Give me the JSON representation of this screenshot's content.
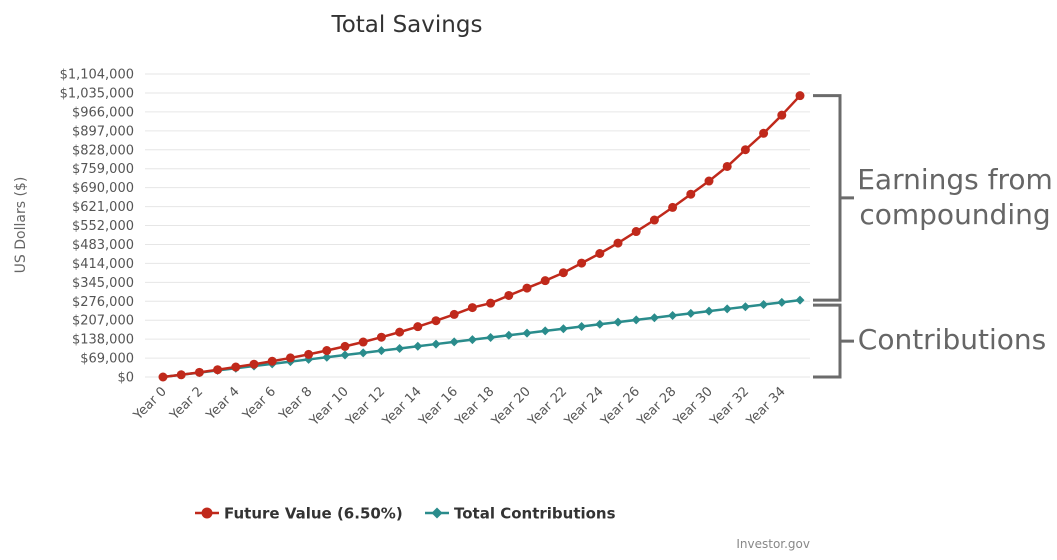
{
  "chart_data": {
    "type": "line",
    "title": "Total Savings",
    "ylabel": "US Dollars ($)",
    "xlabel": "",
    "ylim": [
      0,
      1104000
    ],
    "y_ticks": [
      0,
      69000,
      138000,
      207000,
      276000,
      345000,
      414000,
      483000,
      552000,
      621000,
      690000,
      759000,
      828000,
      897000,
      966000,
      1035000,
      1104000
    ],
    "y_tick_labels": [
      "$0",
      "$69,000",
      "$138,000",
      "$207,000",
      "$276,000",
      "$345,000",
      "$414,000",
      "$483,000",
      "$552,000",
      "$621,000",
      "$690,000",
      "$759,000",
      "$828,000",
      "$897,000",
      "$966,000",
      "$1,035,000",
      "$1,104,000"
    ],
    "categories": [
      "Year 0",
      "Year 1",
      "Year 2",
      "Year 3",
      "Year 4",
      "Year 5",
      "Year 6",
      "Year 7",
      "Year 8",
      "Year 9",
      "Year 10",
      "Year 11",
      "Year 12",
      "Year 13",
      "Year 14",
      "Year 15",
      "Year 16",
      "Year 17",
      "Year 18",
      "Year 19",
      "Year 20",
      "Year 21",
      "Year 22",
      "Year 23",
      "Year 24",
      "Year 25",
      "Year 26",
      "Year 27",
      "Year 28",
      "Year 29",
      "Year 30",
      "Year 31",
      "Year 32",
      "Year 33",
      "Year 34",
      "Year 35"
    ],
    "x_tick_labels": [
      "Year 0",
      "Year 2",
      "Year 4",
      "Year 6",
      "Year 8",
      "Year 10",
      "Year 12",
      "Year 14",
      "Year 16",
      "Year 18",
      "Year 20",
      "Year 22",
      "Year 24",
      "Year 26",
      "Year 28",
      "Year 30",
      "Year 32",
      "Year 34"
    ],
    "grid": true,
    "legend_position": "bottom",
    "series": [
      {
        "name": "Future Value (6.50%)",
        "color": "#c0291b",
        "marker": "circle",
        "values": [
          0,
          8000,
          17000,
          26500,
          36300,
          46500,
          57500,
          69500,
          82300,
          96500,
          111500,
          127500,
          145000,
          163500,
          183500,
          205000,
          228000,
          253000,
          269000,
          297000,
          324000,
          351000,
          380000,
          415000,
          450000,
          488000,
          530000,
          572000,
          618000,
          666000,
          714000,
          767000,
          828000,
          888000,
          954000,
          1025000
        ]
      },
      {
        "name": "Total Contributions",
        "color": "#2a8c8c",
        "marker": "diamond",
        "values": [
          0,
          8000,
          16000,
          24000,
          32000,
          40000,
          48000,
          56000,
          64000,
          72000,
          80000,
          88000,
          96000,
          104000,
          112000,
          120000,
          128000,
          136000,
          144000,
          152000,
          160000,
          168000,
          176000,
          184000,
          192000,
          200000,
          208000,
          216000,
          224000,
          232000,
          240000,
          248000,
          256000,
          264000,
          272000,
          280000
        ]
      }
    ],
    "annotations": [
      {
        "text_lines": [
          "Earnings from",
          "compounding"
        ]
      },
      {
        "text_lines": [
          "Contributions"
        ]
      }
    ],
    "credits": "Investor.gov"
  }
}
